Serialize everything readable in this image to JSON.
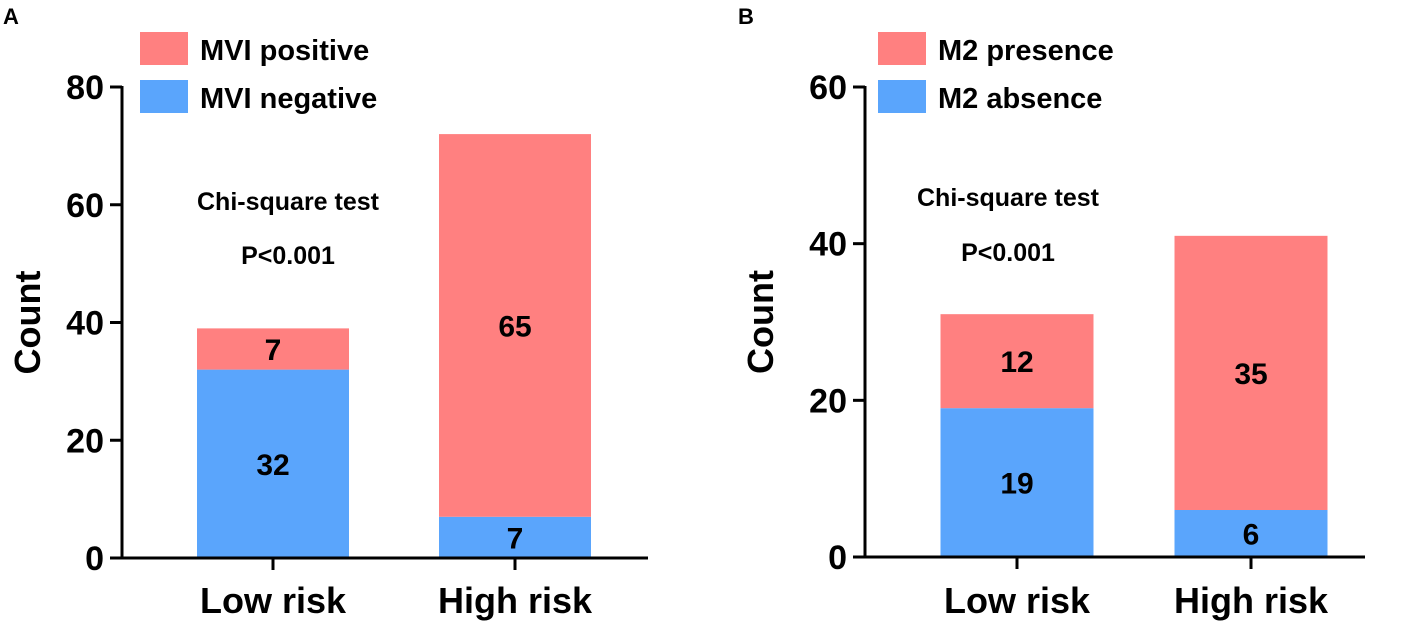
{
  "chart_data": [
    {
      "panel": "A",
      "type": "bar",
      "stacked": true,
      "categories": [
        "Low risk",
        "High risk"
      ],
      "series": [
        {
          "name": "MVI negative",
          "color": "#5aa5fc",
          "values": [
            32,
            7
          ]
        },
        {
          "name": "MVI positive",
          "color": "#ff8080",
          "values": [
            7,
            65
          ]
        }
      ],
      "legend": [
        "MVI positive",
        "MVI negative"
      ],
      "ylabel": "Count",
      "xlabel": "",
      "ylim": [
        0,
        80
      ],
      "yticks": [
        0,
        20,
        40,
        60,
        80
      ],
      "annotations": [
        "Chi-square test",
        "P<0.001"
      ]
    },
    {
      "panel": "B",
      "type": "bar",
      "stacked": true,
      "categories": [
        "Low risk",
        "High risk"
      ],
      "series": [
        {
          "name": "M2 absence",
          "color": "#5aa5fc",
          "values": [
            19,
            6
          ]
        },
        {
          "name": "M2 presence",
          "color": "#ff8080",
          "values": [
            12,
            35
          ]
        }
      ],
      "legend": [
        "M2 presence",
        "M2 absence"
      ],
      "ylabel": "Count",
      "xlabel": "",
      "ylim": [
        0,
        60
      ],
      "yticks": [
        0,
        20,
        40,
        60
      ],
      "annotations": [
        "Chi-square test",
        "P<0.001"
      ]
    }
  ]
}
